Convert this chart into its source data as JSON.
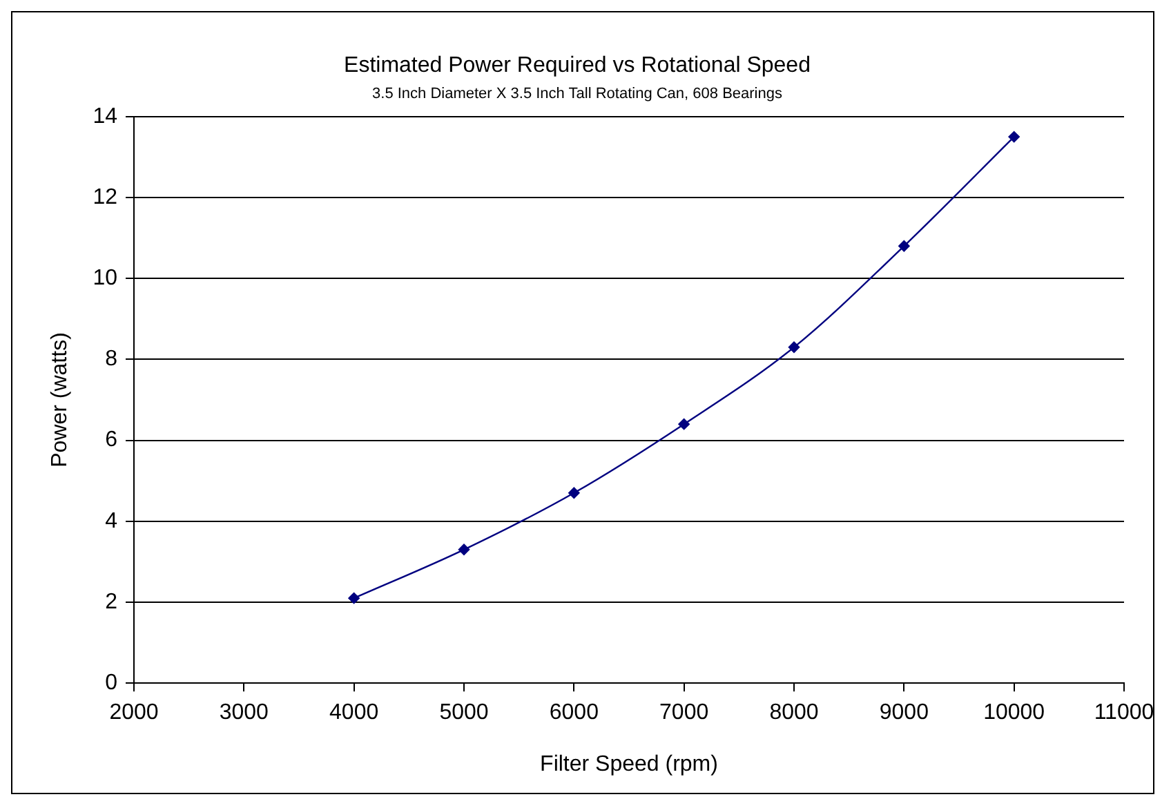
{
  "chart_data": {
    "type": "line",
    "title": "Estimated Power Required vs Rotational Speed",
    "subtitle": "3.5 Inch Diameter X 3.5 Inch Tall Rotating Can, 608 Bearings",
    "xlabel": "Filter Speed (rpm)",
    "ylabel": "Power (watts)",
    "x": [
      4000,
      5000,
      6000,
      7000,
      8000,
      9000,
      10000
    ],
    "series": [
      {
        "color": "#000080",
        "values": [
          2.1,
          3.3,
          4.7,
          6.4,
          8.3,
          10.8,
          13.5
        ]
      }
    ],
    "xlim": [
      2000,
      11000
    ],
    "xticks": [
      2000,
      3000,
      4000,
      5000,
      6000,
      7000,
      8000,
      9000,
      10000,
      11000
    ],
    "ylim": [
      0,
      14
    ],
    "yticks": [
      0,
      2,
      4,
      6,
      8,
      10,
      12,
      14
    ],
    "grid": "y",
    "legend": false,
    "marker": "diamond",
    "line_style": "solid"
  }
}
